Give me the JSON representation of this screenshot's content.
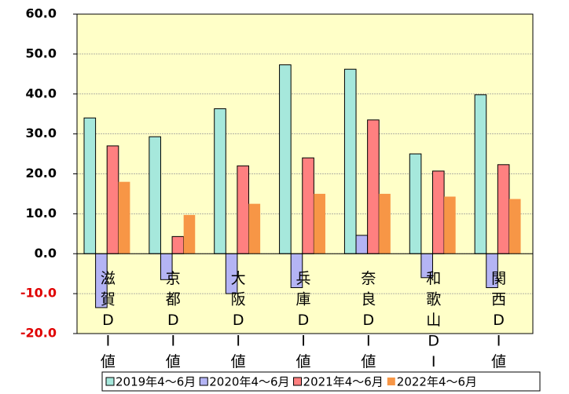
{
  "chart_data": {
    "type": "bar",
    "categories": [
      "滋賀DI値",
      "京都DI値",
      "大阪DI値",
      "兵庫DI値",
      "奈良DI値",
      "和歌山DI値",
      "関西DI値"
    ],
    "series": [
      {
        "name": "2019年4～6月",
        "color": "#a6e8dc",
        "values": [
          34.0,
          29.3,
          36.3,
          47.3,
          46.2,
          25.0,
          39.8
        ]
      },
      {
        "name": "2020年4～6月",
        "color": "#b4b4f4",
        "values": [
          -13.5,
          -6.5,
          -10.0,
          -8.5,
          4.6,
          -6.0,
          -8.5
        ]
      },
      {
        "name": "2021年4～6月",
        "color": "#ff8080",
        "values": [
          27.0,
          4.3,
          22.0,
          24.0,
          33.5,
          20.7,
          22.3
        ]
      },
      {
        "name": "2022年4～6月",
        "color": "#f79646",
        "values": [
          18.0,
          9.7,
          12.5,
          15.0,
          15.0,
          14.3,
          13.7
        ]
      }
    ],
    "ylim": [
      -20,
      60
    ],
    "yticks": [
      {
        "value": -20,
        "label": "-20.0"
      },
      {
        "value": -10,
        "label": "-10.0"
      },
      {
        "value": 0,
        "label": "0.0"
      },
      {
        "value": 10,
        "label": "10.0"
      },
      {
        "value": 20,
        "label": "20.0"
      },
      {
        "value": 30,
        "label": "30.0"
      },
      {
        "value": 40,
        "label": "40.0"
      },
      {
        "value": 50,
        "label": "50.0"
      },
      {
        "value": 60,
        "label": "60.0"
      }
    ],
    "grid": true,
    "legend": "bottom"
  }
}
